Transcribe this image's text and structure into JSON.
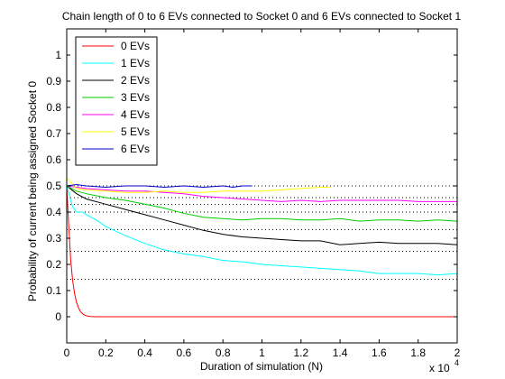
{
  "chart_data": {
    "type": "line",
    "title": "Chain length of 0 to 6 EVs connected to Socket 0 and 6 EVs connected to Socket 1",
    "xlabel": "Duration of simulation (N)",
    "ylabel": "Probability of current being assigned Socket 0",
    "x_multiplier_label": "x 10",
    "x_multiplier_exponent": "4",
    "xlim": [
      0,
      20000
    ],
    "ylim": [
      -0.1,
      1.1
    ],
    "x_ticks": [
      0,
      2000,
      4000,
      6000,
      8000,
      10000,
      12000,
      14000,
      16000,
      18000,
      20000
    ],
    "x_tick_labels": [
      "0",
      "0.2",
      "0.4",
      "0.6",
      "0.8",
      "1",
      "1.2",
      "1.4",
      "1.6",
      "1.8",
      "2"
    ],
    "y_ticks": [
      0,
      0.1,
      0.2,
      0.3,
      0.4,
      0.5,
      0.6,
      0.7,
      0.8,
      0.9,
      1
    ],
    "y_tick_labels": [
      "0",
      "0.1",
      "0.2",
      "0.3",
      "0.4",
      "0.5",
      "0.6",
      "0.7",
      "0.8",
      "0.9",
      "1"
    ],
    "grid": false,
    "legend_position": "top-left",
    "reference_lines": {
      "style": "dotted",
      "color": "#000000",
      "values": [
        0.143,
        0.25,
        0.333,
        0.4,
        0.429,
        0.455,
        0.5
      ]
    },
    "series": [
      {
        "name": "0 EVs",
        "color": "#ff0000",
        "x": [
          0,
          100,
          200,
          300,
          400,
          500,
          600,
          700,
          800,
          900,
          1000,
          1200,
          1500,
          2000,
          5000,
          10000,
          15000,
          20000
        ],
        "y": [
          0.5,
          0.35,
          0.22,
          0.14,
          0.09,
          0.055,
          0.035,
          0.02,
          0.012,
          0.007,
          0.004,
          0.001,
          0.0,
          0.0,
          0.0,
          0.0,
          0.0,
          0.0
        ]
      },
      {
        "name": "1 EVs",
        "color": "#00ffff",
        "x": [
          0,
          300,
          500,
          800,
          1000,
          1500,
          2000,
          3000,
          4000,
          5000,
          6000,
          7000,
          8000,
          9000,
          10000,
          11000,
          12000,
          13000,
          14000,
          15000,
          16000,
          17000,
          18000,
          19000,
          20000
        ],
        "y": [
          0.5,
          0.42,
          0.4,
          0.4,
          0.39,
          0.37,
          0.345,
          0.31,
          0.28,
          0.255,
          0.24,
          0.23,
          0.215,
          0.21,
          0.2,
          0.195,
          0.19,
          0.185,
          0.18,
          0.175,
          0.165,
          0.165,
          0.165,
          0.16,
          0.165
        ]
      },
      {
        "name": "2 EVs",
        "color": "#000000",
        "x": [
          0,
          500,
          1000,
          2000,
          3000,
          4000,
          5000,
          6000,
          7000,
          8000,
          9000,
          10000,
          11000,
          12000,
          13000,
          14000,
          15000,
          16000,
          17000,
          18000,
          19000,
          20000
        ],
        "y": [
          0.5,
          0.47,
          0.45,
          0.43,
          0.41,
          0.39,
          0.37,
          0.35,
          0.33,
          0.315,
          0.305,
          0.3,
          0.295,
          0.29,
          0.29,
          0.275,
          0.28,
          0.285,
          0.28,
          0.28,
          0.28,
          0.275
        ]
      },
      {
        "name": "3 EVs",
        "color": "#00cc00",
        "x": [
          0,
          500,
          1000,
          2000,
          3000,
          4000,
          5000,
          6000,
          7000,
          8000,
          9000,
          10000,
          11000,
          12000,
          13000,
          14000,
          15000,
          16000,
          17000,
          18000,
          19000,
          20000
        ],
        "y": [
          0.5,
          0.48,
          0.47,
          0.455,
          0.445,
          0.43,
          0.415,
          0.395,
          0.38,
          0.375,
          0.37,
          0.375,
          0.375,
          0.37,
          0.37,
          0.375,
          0.365,
          0.37,
          0.37,
          0.365,
          0.37,
          0.365
        ]
      },
      {
        "name": "4 EVs",
        "color": "#ff00ff",
        "x": [
          0,
          1000,
          2000,
          3000,
          4000,
          5000,
          6000,
          7000,
          8000,
          9000,
          10000,
          11000,
          12000,
          13000,
          14000,
          15000,
          16000,
          17000,
          18000,
          19000,
          20000
        ],
        "y": [
          0.5,
          0.49,
          0.485,
          0.48,
          0.48,
          0.475,
          0.47,
          0.46,
          0.455,
          0.45,
          0.445,
          0.44,
          0.445,
          0.44,
          0.445,
          0.445,
          0.445,
          0.445,
          0.44,
          0.44,
          0.44
        ]
      },
      {
        "name": "5 EVs",
        "color": "#ffff00",
        "x": [
          0,
          150,
          300,
          500,
          1000,
          2000,
          3000,
          4000,
          5000,
          6000,
          7000,
          8000,
          9000,
          10000,
          11000,
          12000,
          13000,
          13500
        ],
        "y": [
          0.53,
          0.52,
          0.505,
          0.49,
          0.485,
          0.48,
          0.475,
          0.475,
          0.48,
          0.475,
          0.475,
          0.48,
          0.48,
          0.48,
          0.485,
          0.49,
          0.495,
          0.495
        ]
      },
      {
        "name": "6 EVs",
        "color": "#0000cc",
        "x": [
          0,
          500,
          1000,
          2000,
          3000,
          4000,
          5000,
          6000,
          7000,
          8000,
          8500,
          9000,
          9500
        ],
        "y": [
          0.5,
          0.505,
          0.5,
          0.495,
          0.5,
          0.5,
          0.495,
          0.5,
          0.495,
          0.5,
          0.495,
          0.5,
          0.5
        ]
      }
    ]
  }
}
